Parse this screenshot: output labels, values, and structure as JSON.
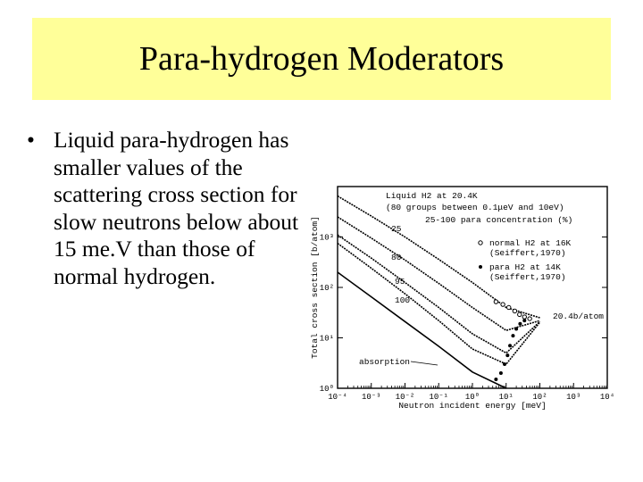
{
  "title": "Para-hydrogen Moderators",
  "bullet": {
    "marker": "•",
    "text": "Liquid para-hydrogen has smaller values of the scattering cross section for slow neutrons below about 15 me.V than those of normal hydrogen."
  },
  "chart_data": {
    "type": "line",
    "title": "Liquid H2 at 20.4K",
    "subtitle": "(80 groups between 0.1μeV and 10eV)",
    "legend_title": "25-100  para concentration (%)",
    "xlabel": "Neutron incident energy [meV]",
    "ylabel": "Total cross section [b/atom]",
    "x_scale": "log",
    "y_scale": "log",
    "xlim": [
      0.0001,
      10000
    ],
    "ylim": [
      1,
      10000
    ],
    "x_ticks": [
      {
        "v": 0.0001,
        "label": "10⁻⁴"
      },
      {
        "v": 0.001,
        "label": "10⁻³"
      },
      {
        "v": 0.01,
        "label": "10⁻²"
      },
      {
        "v": 0.1,
        "label": "10⁻¹"
      },
      {
        "v": 1,
        "label": "10⁰"
      },
      {
        "v": 10,
        "label": "10¹"
      },
      {
        "v": 100,
        "label": "10²"
      },
      {
        "v": 1000,
        "label": "10³"
      },
      {
        "v": 10000,
        "label": "10⁴"
      }
    ],
    "y_ticks": [
      {
        "v": 1,
        "label": "10⁰"
      },
      {
        "v": 10,
        "label": "10¹"
      },
      {
        "v": 100,
        "label": "10²"
      },
      {
        "v": 1000,
        "label": "10³"
      }
    ],
    "series": [
      {
        "name": "25",
        "x": [
          0.0001,
          0.001,
          0.01,
          0.1,
          1,
          10,
          100
        ],
        "y": [
          6500,
          2600,
          1000,
          360,
          125,
          40,
          25
        ]
      },
      {
        "name": "80",
        "x": [
          0.0001,
          0.001,
          0.01,
          0.1,
          1,
          10,
          100
        ],
        "y": [
          2500,
          950,
          350,
          120,
          40,
          14,
          22
        ]
      },
      {
        "name": "95",
        "x": [
          0.0001,
          0.001,
          0.01,
          0.1,
          1,
          10,
          100
        ],
        "y": [
          1100,
          380,
          125,
          40,
          12,
          5,
          21
        ]
      },
      {
        "name": "100",
        "x": [
          0.0001,
          0.001,
          0.01,
          0.1,
          1,
          10,
          100
        ],
        "y": [
          750,
          240,
          75,
          22,
          6,
          3,
          20.4
        ]
      },
      {
        "name": "absorption",
        "x": [
          0.0001,
          0.001,
          0.01,
          0.1,
          1,
          10
        ],
        "y": [
          200,
          65,
          21,
          6.8,
          2.1,
          1.0
        ]
      }
    ],
    "markers": [
      {
        "name": "normal H2 at 16K",
        "source": "(Seiffert,1970)",
        "symbol": "open-circle",
        "x": [
          5,
          8,
          12,
          18,
          25,
          35,
          50
        ],
        "y": [
          52,
          46,
          40,
          34,
          29,
          26,
          24
        ]
      },
      {
        "name": "para H2 at 14K",
        "source": "(Seiffert,1970)",
        "symbol": "filled-dot",
        "x": [
          5,
          7,
          9,
          11,
          13,
          16,
          20,
          26,
          35
        ],
        "y": [
          1.5,
          2,
          3,
          4.5,
          7,
          11,
          15,
          19,
          22
        ]
      }
    ],
    "annotations": [
      "20.4b/atom",
      "absorption",
      "25",
      "80",
      "95",
      "100"
    ],
    "grid": false
  }
}
